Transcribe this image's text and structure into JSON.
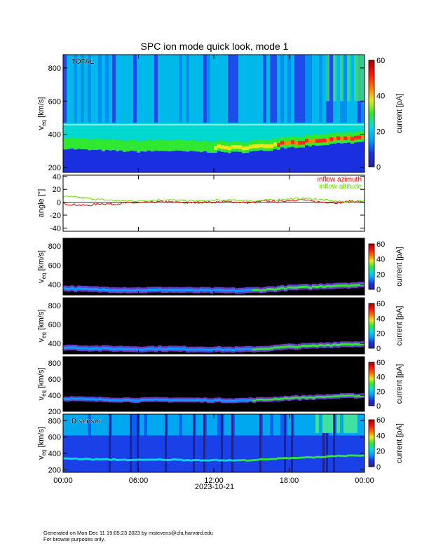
{
  "title": "SPC ion mode quick look, mode 1",
  "date": "2023-10-21",
  "footer": {
    "line1": "Generated on Mon Dec 11 19:05:23 2023 by mstevens@cfa.harvard.edu",
    "line2": "For browse purposes only."
  },
  "colorscale": [
    "#222299",
    "#1a2fe0",
    "#00a0ff",
    "#00e0e0",
    "#30e830",
    "#e8e820",
    "#ff7000",
    "#ff1010",
    "#a00000"
  ],
  "chart_data": [
    {
      "type": "heatmap",
      "panel": "total",
      "label": "TOTAL",
      "ylabel": "v_eq [km/s]",
      "ylim": [
        170,
        880
      ],
      "yticks": [
        200,
        400,
        600,
        800
      ],
      "xticks": [
        "00:00",
        "06:00",
        "12:00",
        "18:00",
        "00:00"
      ],
      "xlim_hours": [
        0,
        24
      ],
      "colorbar": {
        "label": "current [pA]",
        "range": [
          0,
          60
        ],
        "ticks": [
          0,
          20,
          40,
          60
        ]
      },
      "peak_velocity_km_s": {
        "hours": [
          0,
          2,
          4,
          6,
          8,
          10,
          12,
          14,
          16,
          18,
          20,
          22,
          24
        ],
        "values": [
          340,
          330,
          325,
          320,
          325,
          320,
          318,
          315,
          325,
          345,
          355,
          370,
          375
        ]
      }
    },
    {
      "type": "line",
      "panel": "angle",
      "ylabel": "angle [°]",
      "ylim": [
        -45,
        42
      ],
      "yticks": [
        -40,
        -20,
        0,
        20,
        40
      ],
      "xticks": [
        "00:00",
        "06:00",
        "12:00",
        "18:00",
        "00:00"
      ],
      "series": [
        {
          "name": "inflow azimuth",
          "color": "#ff0000",
          "x": [
            0,
            1,
            2,
            3,
            4,
            5,
            6,
            7,
            8,
            9,
            10,
            11,
            12,
            13,
            14,
            15,
            16,
            17,
            18,
            19,
            20,
            21,
            22,
            23,
            24
          ],
          "y": [
            -2,
            -4,
            -5,
            -2,
            -3,
            -1,
            -1,
            0,
            1,
            0,
            -1,
            0,
            0,
            1,
            0,
            -1,
            2,
            1,
            3,
            4,
            1,
            0,
            -1,
            2,
            0
          ]
        },
        {
          "name": "inflow altitude",
          "color": "#66dd00",
          "x": [
            0,
            1,
            2,
            3,
            4,
            5,
            6,
            7,
            8,
            9,
            10,
            11,
            12,
            13,
            14,
            15,
            16,
            17,
            18,
            19,
            20,
            21,
            22,
            23,
            24
          ],
          "y": [
            9,
            8,
            6,
            4,
            3,
            2,
            2,
            3,
            4,
            3,
            2,
            2,
            3,
            3,
            3,
            2,
            3,
            4,
            5,
            6,
            5,
            3,
            1,
            1,
            3
          ]
        }
      ]
    },
    {
      "type": "heatmap",
      "panel": "sensor_a",
      "ylabel": "v_eq [km/s]",
      "ylim": [
        290,
        880
      ],
      "yticks": [
        400,
        600,
        800
      ],
      "colorbar": {
        "label": "current [pA]",
        "range": [
          0,
          60
        ],
        "ticks": [
          0,
          20,
          40,
          60
        ]
      }
    },
    {
      "type": "heatmap",
      "panel": "sensor_b",
      "ylabel": "v_eq [km/s]",
      "ylim": [
        290,
        880
      ],
      "yticks": [
        400,
        600,
        800
      ],
      "colorbar": {
        "label": "current [pA]",
        "range": [
          0,
          60
        ],
        "ticks": [
          0,
          20,
          40,
          60
        ]
      }
    },
    {
      "type": "heatmap",
      "panel": "sensor_c",
      "ylabel": "v_eq [km/s]",
      "ylim": [
        200,
        880
      ],
      "yticks": [
        200,
        400,
        600,
        800
      ],
      "colorbar": {
        "label": "current [pA]",
        "range": [
          0,
          60
        ],
        "ticks": [
          0,
          20,
          40,
          60
        ]
      }
    },
    {
      "type": "heatmap",
      "panel": "sensor_d",
      "label": "D sensor",
      "ylabel": "v_eq [km/s]",
      "ylim": [
        170,
        880
      ],
      "yticks": [
        200,
        400,
        600,
        800
      ],
      "colorbar": {
        "label": "current [pA]",
        "range": [
          0,
          60
        ],
        "ticks": [
          0,
          20,
          40,
          60
        ]
      }
    }
  ]
}
